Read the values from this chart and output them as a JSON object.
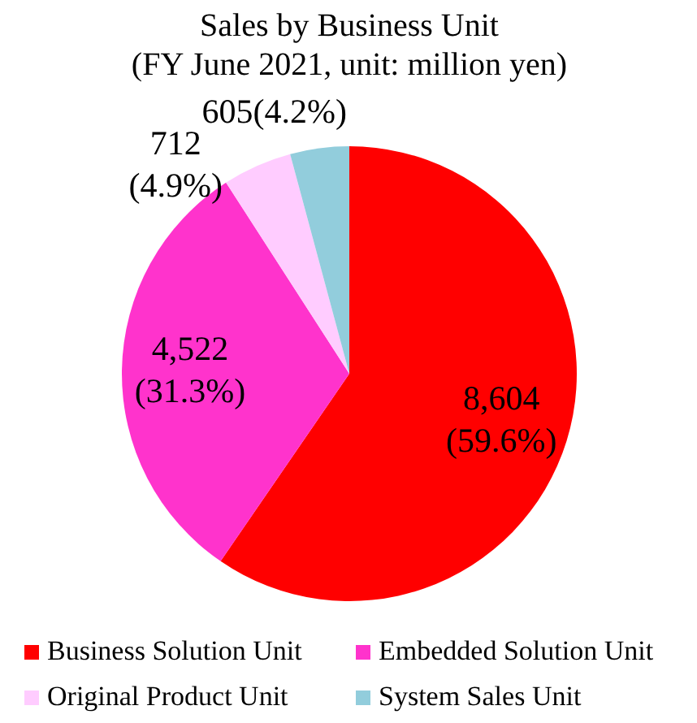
{
  "chart_data": {
    "type": "pie",
    "title": "Sales by Business Unit\n(FY June 2021, unit: million yen)",
    "categories": [
      "Business Solution Unit",
      "Embedded Solution Unit",
      "Original Product Unit",
      "System Sales Unit"
    ],
    "values": [
      8604,
      4522,
      712,
      605
    ],
    "colors": [
      "#ff0000",
      "#ff33cc",
      "#ffccff",
      "#92cddc"
    ],
    "value_labels": [
      "8,604\n(59.6%)",
      "4,522\n(31.3%)",
      "712\n(4.9%)",
      "605(4.2%)"
    ],
    "legend": "bottom"
  }
}
